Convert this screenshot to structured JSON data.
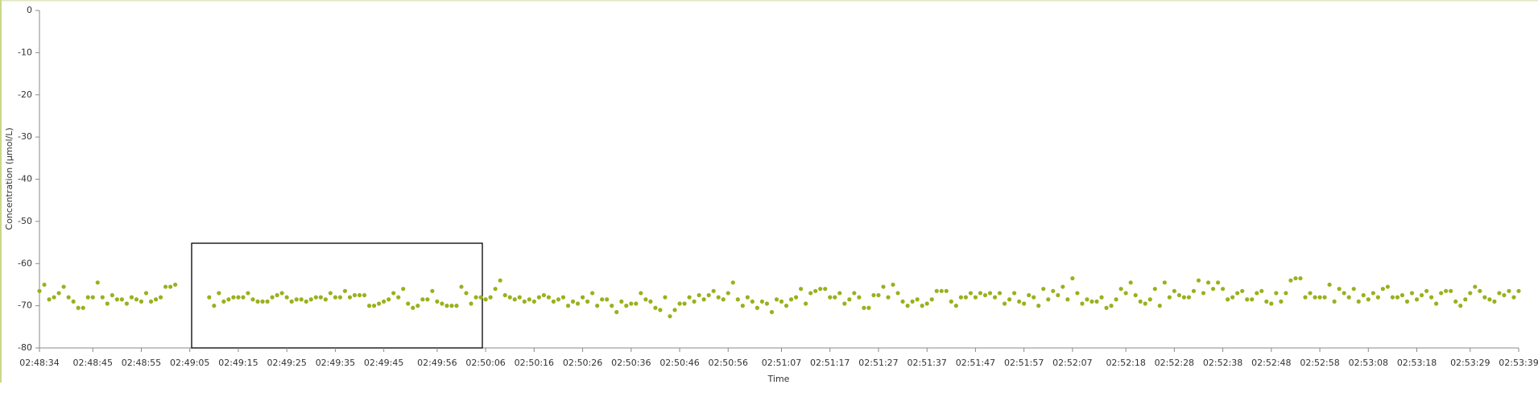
{
  "chart_data": {
    "type": "scatter",
    "x_label": "Time",
    "y_label": "Concentration (µmol/L)",
    "xlim": [
      "02:48:34",
      "02:53:39"
    ],
    "xticks": [
      "02:48:34",
      "02:48:45",
      "02:48:55",
      "02:49:05",
      "02:49:15",
      "02:49:25",
      "02:49:35",
      "02:49:45",
      "02:49:56",
      "02:50:06",
      "02:50:16",
      "02:50:26",
      "02:50:36",
      "02:50:46",
      "02:50:56",
      "02:51:07",
      "02:51:17",
      "02:51:27",
      "02:51:37",
      "02:51:47",
      "02:51:57",
      "02:52:07",
      "02:52:18",
      "02:52:28",
      "02:52:38",
      "02:52:48",
      "02:52:58",
      "02:53:08",
      "02:53:18",
      "02:53:29",
      "02:53:39"
    ],
    "ylim": [
      -80,
      0
    ],
    "yticks": [
      0,
      -10,
      -20,
      -30,
      -40,
      -50,
      -60,
      -70,
      -80
    ],
    "color": "#9bb01c",
    "x": [
      "02:48:34",
      "02:48:35",
      "02:48:36",
      "02:48:37",
      "02:48:38",
      "02:48:39",
      "02:48:40",
      "02:48:41",
      "02:48:42",
      "02:48:43",
      "02:48:44",
      "02:48:45",
      "02:48:46",
      "02:48:47",
      "02:48:48",
      "02:48:49",
      "02:48:50",
      "02:48:51",
      "02:48:52",
      "02:48:53",
      "02:48:54",
      "02:48:55",
      "02:48:56",
      "02:48:57",
      "02:48:58",
      "02:48:59",
      "02:49:00",
      "02:49:01",
      "02:49:02",
      "02:49:09",
      "02:49:10",
      "02:49:11",
      "02:49:12",
      "02:49:13",
      "02:49:14",
      "02:49:15",
      "02:49:16",
      "02:49:17",
      "02:49:18",
      "02:49:19",
      "02:49:20",
      "02:49:21",
      "02:49:22",
      "02:49:23",
      "02:49:24",
      "02:49:25",
      "02:49:26",
      "02:49:27",
      "02:49:28",
      "02:49:29",
      "02:49:30",
      "02:49:31",
      "02:49:32",
      "02:49:33",
      "02:49:34",
      "02:49:35",
      "02:49:36",
      "02:49:37",
      "02:49:38",
      "02:49:39",
      "02:49:40",
      "02:49:41",
      "02:49:42",
      "02:49:43",
      "02:49:44",
      "02:49:45",
      "02:49:46",
      "02:49:47",
      "02:49:48",
      "02:49:49",
      "02:49:50",
      "02:49:51",
      "02:49:52",
      "02:49:53",
      "02:49:54",
      "02:49:55",
      "02:49:56",
      "02:49:57",
      "02:49:58",
      "02:49:59",
      "02:50:00",
      "02:50:01",
      "02:50:02",
      "02:50:03",
      "02:50:04",
      "02:50:05",
      "02:50:06",
      "02:50:07",
      "02:50:08",
      "02:50:09",
      "02:50:10",
      "02:50:11",
      "02:50:12",
      "02:50:13",
      "02:50:14",
      "02:50:15",
      "02:50:16",
      "02:50:17",
      "02:50:18",
      "02:50:19",
      "02:50:20",
      "02:50:21",
      "02:50:22",
      "02:50:23",
      "02:50:24",
      "02:50:25",
      "02:50:26",
      "02:50:27",
      "02:50:28",
      "02:50:29",
      "02:50:30",
      "02:50:31",
      "02:50:32",
      "02:50:33",
      "02:50:34",
      "02:50:35",
      "02:50:36",
      "02:50:37",
      "02:50:38",
      "02:50:39",
      "02:50:40",
      "02:50:41",
      "02:50:42",
      "02:50:43",
      "02:50:44",
      "02:50:45",
      "02:50:46",
      "02:50:47",
      "02:50:48",
      "02:50:49",
      "02:50:50",
      "02:50:51",
      "02:50:52",
      "02:50:53",
      "02:50:54",
      "02:50:55",
      "02:50:56",
      "02:50:57",
      "02:50:58",
      "02:50:59",
      "02:51:00",
      "02:51:01",
      "02:51:02",
      "02:51:03",
      "02:51:04",
      "02:51:05",
      "02:51:06",
      "02:51:07",
      "02:51:08",
      "02:51:09",
      "02:51:10",
      "02:51:11",
      "02:51:12",
      "02:51:13",
      "02:51:14",
      "02:51:15",
      "02:51:16",
      "02:51:17",
      "02:51:18",
      "02:51:19",
      "02:51:20",
      "02:51:21",
      "02:51:22",
      "02:51:23",
      "02:51:24",
      "02:51:25",
      "02:51:26",
      "02:51:27",
      "02:51:28",
      "02:51:29",
      "02:51:30",
      "02:51:31",
      "02:51:32",
      "02:51:33",
      "02:51:34",
      "02:51:35",
      "02:51:36",
      "02:51:37",
      "02:51:38",
      "02:51:39",
      "02:51:40",
      "02:51:41",
      "02:51:42",
      "02:51:43",
      "02:51:44",
      "02:51:45",
      "02:51:46",
      "02:51:47",
      "02:51:48",
      "02:51:49",
      "02:51:50",
      "02:51:51",
      "02:51:52",
      "02:51:53",
      "02:51:54",
      "02:51:55",
      "02:51:56",
      "02:51:57",
      "02:51:58",
      "02:51:59",
      "02:52:00",
      "02:52:01",
      "02:52:02",
      "02:52:03",
      "02:52:04",
      "02:52:05",
      "02:52:06",
      "02:52:07",
      "02:52:08",
      "02:52:09",
      "02:52:10",
      "02:52:11",
      "02:52:12",
      "02:52:13",
      "02:52:14",
      "02:52:15",
      "02:52:16",
      "02:52:17",
      "02:52:18",
      "02:52:19",
      "02:52:20",
      "02:52:21",
      "02:52:22",
      "02:52:23",
      "02:52:24",
      "02:52:25",
      "02:52:26",
      "02:52:27",
      "02:52:28",
      "02:52:29",
      "02:52:30",
      "02:52:31",
      "02:52:32",
      "02:52:33",
      "02:52:34",
      "02:52:35",
      "02:52:36",
      "02:52:37",
      "02:52:38",
      "02:52:39",
      "02:52:40",
      "02:52:41",
      "02:52:42",
      "02:52:43",
      "02:52:44",
      "02:52:45",
      "02:52:46",
      "02:52:47",
      "02:52:48",
      "02:52:49",
      "02:52:50",
      "02:52:51",
      "02:52:52",
      "02:52:53",
      "02:52:54",
      "02:52:55",
      "02:52:56",
      "02:52:57",
      "02:52:58",
      "02:52:59",
      "02:53:00",
      "02:53:01",
      "02:53:02",
      "02:53:03",
      "02:53:04",
      "02:53:05",
      "02:53:06",
      "02:53:07",
      "02:53:08",
      "02:53:09",
      "02:53:10",
      "02:53:11",
      "02:53:12",
      "02:53:13",
      "02:53:14",
      "02:53:15",
      "02:53:16",
      "02:53:17",
      "02:53:18",
      "02:53:19",
      "02:53:20",
      "02:53:21",
      "02:53:22",
      "02:53:23",
      "02:53:24",
      "02:53:25",
      "02:53:26",
      "02:53:27",
      "02:53:28",
      "02:53:29",
      "02:53:30",
      "02:53:31",
      "02:53:32",
      "02:53:33",
      "02:53:34",
      "02:53:35",
      "02:53:36",
      "02:53:37",
      "02:53:38",
      "02:53:39"
    ],
    "values": [
      -66.5,
      -65,
      -68.5,
      -68,
      -67,
      -65.5,
      -68,
      -69,
      -70.5,
      -70.5,
      -68,
      -68,
      -64.5,
      -68,
      -69.5,
      -67.5,
      -68.5,
      -68.5,
      -69.5,
      -68,
      -68.5,
      -69,
      -67,
      -69,
      -68.5,
      -68,
      -65.5,
      -65.5,
      -65,
      -68,
      -70,
      -67,
      -69,
      -68.5,
      -68,
      -68,
      -68,
      -67,
      -68.5,
      -69,
      -69,
      -69,
      -68,
      -67.5,
      -67,
      -68,
      -69,
      -68.5,
      -68.5,
      -69,
      -68.5,
      -68,
      -68,
      -68.5,
      -67,
      -68,
      -68,
      -66.5,
      -68,
      -67.5,
      -67.5,
      -67.5,
      -70,
      -70,
      -69.5,
      -69,
      -68.5,
      -67,
      -68,
      -66,
      -69.5,
      -70.5,
      -70,
      -68.5,
      -68.5,
      -66.5,
      -69,
      -69.5,
      -70,
      -70,
      -70,
      -65.5,
      -67,
      -69.5,
      -68,
      -68,
      -68.5,
      -68,
      -66,
      -64,
      -67.5,
      -68,
      -68.5,
      -68,
      -69,
      -68.5,
      -69,
      -68,
      -67.5,
      -68,
      -69,
      -68.5,
      -68,
      -70,
      -69,
      -69.5,
      -68,
      -69,
      -67,
      -70,
      -68.5,
      -68.5,
      -70,
      -71.5,
      -69,
      -70,
      -69.5,
      -69.5,
      -67,
      -68.5,
      -69,
      -70.5,
      -71,
      -68,
      -72.5,
      -71,
      -69.5,
      -69.5,
      -68,
      -69,
      -67.5,
      -68.5,
      -67.5,
      -66.5,
      -68,
      -68.5,
      -67,
      -64.5,
      -68.5,
      -70,
      -68,
      -69,
      -70.5,
      -69,
      -69.5,
      -71.5,
      -68.5,
      -69,
      -70,
      -68.5,
      -68,
      -66,
      -69.5,
      -67,
      -66.5,
      -66,
      -66,
      -68,
      -68,
      -67,
      -69.5,
      -68.5,
      -67,
      -68,
      -70.5,
      -70.5,
      -67.5,
      -67.5,
      -65.5,
      -68,
      -65,
      -67,
      -69,
      -70,
      -69,
      -68.5,
      -70,
      -69.5,
      -68.5,
      -66.5,
      -66.5,
      -66.5,
      -69,
      -70,
      -68,
      -68,
      -67,
      -68,
      -67,
      -67.5,
      -67,
      -68,
      -67,
      -69.5,
      -68.5,
      -67,
      -69,
      -69.5,
      -67.5,
      -68,
      -70,
      -66,
      -68.5,
      -66.5,
      -67.5,
      -65.5,
      -68.5,
      -63.5,
      -67,
      -69.5,
      -68.5,
      -69,
      -69,
      -68,
      -70.5,
      -70,
      -68.5,
      -66,
      -67,
      -64.5,
      -67.5,
      -69,
      -69.5,
      -68.5,
      -66,
      -70,
      -64.5,
      -68,
      -66.5,
      -67.5,
      -68,
      -68,
      -66.5,
      -64,
      -67,
      -64.5,
      -66,
      -64.5,
      -66,
      -68.5,
      -68,
      -67,
      -66.5,
      -68.5,
      -68.5,
      -67,
      -66.5,
      -69,
      -69.5,
      -67,
      -69,
      -67,
      -64,
      -63.5,
      -63.5,
      -68,
      -67,
      -68,
      -68,
      -68,
      -65,
      -69,
      -66,
      -67,
      -68,
      -66,
      -69,
      -67.5,
      -68.5,
      -67,
      -68,
      -66,
      -65.5,
      -68,
      -68,
      -67.5,
      -69,
      -67,
      -68.5,
      -67.5,
      -66.5,
      -68,
      -69.5,
      -67,
      -66.5,
      -66.5,
      -69,
      -70,
      -68.5,
      -67,
      -65.5,
      -66.5,
      -68,
      -68.5,
      -69,
      -67,
      -67.5,
      -66.5,
      -68,
      -66.5
    ]
  }
}
